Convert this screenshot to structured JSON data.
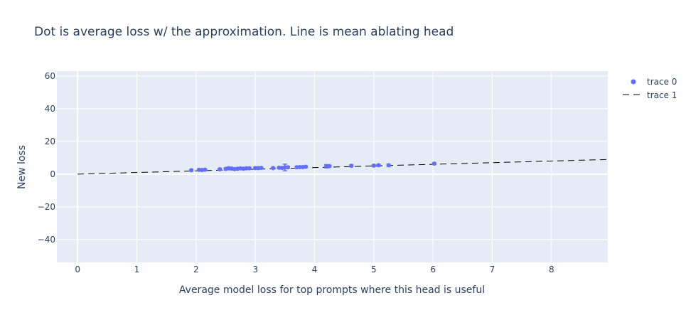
{
  "chart_data": {
    "type": "scatter",
    "title": "Dot is average loss w/ the approximation. Line is mean ablating head",
    "xlabel": "Average model loss for top prompts where this head is useful",
    "ylabel": "New loss",
    "xlim": [
      -0.35,
      8.95
    ],
    "ylim": [
      -54,
      63
    ],
    "xticks": [
      0,
      1,
      2,
      3,
      4,
      5,
      6,
      7,
      8
    ],
    "yticks": [
      -40,
      -20,
      0,
      20,
      40,
      60
    ],
    "grid": true,
    "legend_position": "top-right",
    "colors": {
      "plot_bg": "#e5ecf6",
      "grid": "#ffffff",
      "marker": "#636efa",
      "line": "#000000",
      "text": "#2a3f5f"
    },
    "series": [
      {
        "name": "trace 0",
        "mode": "markers+error_y",
        "x": [
          1.92,
          2.05,
          2.1,
          2.15,
          2.4,
          2.5,
          2.55,
          2.6,
          2.65,
          2.7,
          2.75,
          2.8,
          2.85,
          2.9,
          3.0,
          3.05,
          3.1,
          3.3,
          3.4,
          3.45,
          3.5,
          3.55,
          3.7,
          3.75,
          3.8,
          3.85,
          4.2,
          4.25,
          4.62,
          5.0,
          5.08,
          5.25,
          6.02
        ],
        "y": [
          2.4,
          2.6,
          2.5,
          2.7,
          3.0,
          3.2,
          3.6,
          3.4,
          3.1,
          3.3,
          3.5,
          3.3,
          3.6,
          3.6,
          3.7,
          3.7,
          3.8,
          3.7,
          3.9,
          3.8,
          4.1,
          4.2,
          4.2,
          4.3,
          4.3,
          4.5,
          4.8,
          4.9,
          5.1,
          5.2,
          5.4,
          5.4,
          6.4
        ],
        "error": [
          0.5,
          0.6,
          0.5,
          0.4,
          0.5,
          0.6,
          0.7,
          0.5,
          0.6,
          0.5,
          0.6,
          0.5,
          0.4,
          0.5,
          0.6,
          0.5,
          0.4,
          0.4,
          0.5,
          0.5,
          2.0,
          0.5,
          0.6,
          0.5,
          0.5,
          0.5,
          1.0,
          0.5,
          0.6,
          0.5,
          0.6,
          0.6,
          0.5
        ]
      },
      {
        "name": "trace 1",
        "mode": "lines",
        "dash": "dash",
        "x": [
          0,
          8.95
        ],
        "y": [
          0,
          8.95
        ]
      }
    ]
  }
}
